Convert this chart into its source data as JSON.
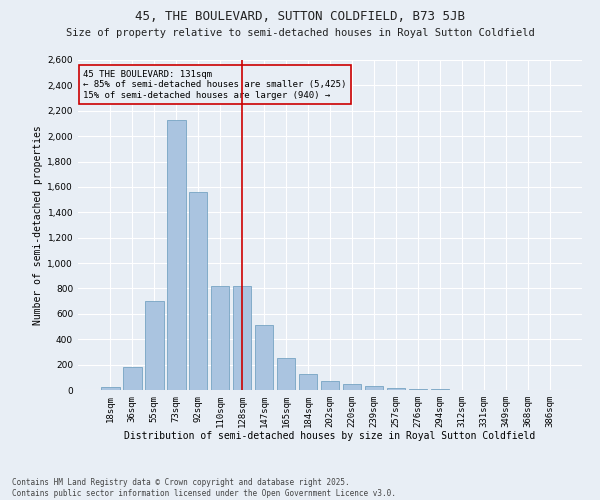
{
  "title": "45, THE BOULEVARD, SUTTON COLDFIELD, B73 5JB",
  "subtitle": "Size of property relative to semi-detached houses in Royal Sutton Coldfield",
  "xlabel": "Distribution of semi-detached houses by size in Royal Sutton Coldfield",
  "ylabel": "Number of semi-detached properties",
  "categories": [
    "18sqm",
    "36sqm",
    "55sqm",
    "73sqm",
    "92sqm",
    "110sqm",
    "128sqm",
    "147sqm",
    "165sqm",
    "184sqm",
    "202sqm",
    "220sqm",
    "239sqm",
    "257sqm",
    "276sqm",
    "294sqm",
    "312sqm",
    "331sqm",
    "349sqm",
    "368sqm",
    "386sqm"
  ],
  "values": [
    20,
    180,
    700,
    2130,
    1560,
    820,
    820,
    510,
    255,
    125,
    70,
    50,
    30,
    15,
    5,
    10,
    2,
    0,
    0,
    0,
    0
  ],
  "bar_color": "#aac4e0",
  "bar_edge_color": "#6699bb",
  "vline_x_index": 6,
  "vline_color": "#cc0000",
  "annotation_box_text": "45 THE BOULEVARD: 131sqm\n← 85% of semi-detached houses are smaller (5,425)\n15% of semi-detached houses are larger (940) →",
  "annotation_box_color": "#cc0000",
  "ylim": [
    0,
    2600
  ],
  "yticks": [
    0,
    200,
    400,
    600,
    800,
    1000,
    1200,
    1400,
    1600,
    1800,
    2000,
    2200,
    2400,
    2600
  ],
  "background_color": "#e8eef5",
  "grid_color": "#ffffff",
  "footer_text": "Contains HM Land Registry data © Crown copyright and database right 2025.\nContains public sector information licensed under the Open Government Licence v3.0.",
  "title_fontsize": 9,
  "subtitle_fontsize": 7.5,
  "xlabel_fontsize": 7,
  "ylabel_fontsize": 7,
  "tick_fontsize": 6.5,
  "annotation_fontsize": 6.5,
  "footer_fontsize": 5.5
}
